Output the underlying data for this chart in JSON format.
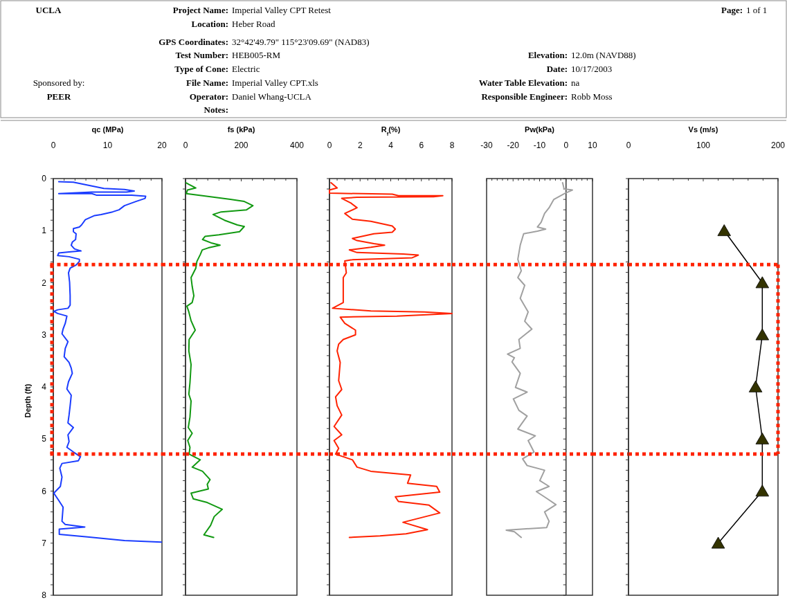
{
  "chart_data": [
    {
      "type": "other",
      "annotations": [
        "UCLA",
        "Sponsored by:",
        "PEER",
        "Project Name: Imperial Valley CPT Retest",
        "Location: Heber Road",
        "GPS Coordinates: 32°42'49.79\" 115°23'09.69\" (NAD83)",
        "Test Number: HEB005-RM",
        "Type of Cone: Electric",
        "File Name: Imperial Valley CPT.xls",
        "Operator: Daniel Whang-UCLA",
        "Notes:",
        "Page: 1 of 1",
        "Elevation: 12.0m (NAVD88)",
        "Date: 10/17/2003",
        "Water Table Elevation: na",
        "Responsible Engineer: Robb Moss"
      ]
    },
    {
      "type": "line",
      "xlabel": "qc (MPa)",
      "ylabel": "Depth (ft)",
      "xlim": [
        0,
        20
      ],
      "ylim": [
        8,
        0
      ],
      "xticks": [
        0,
        {
          "value": 2,
          "label": null
        },
        {
          "value": 4,
          "label": null
        },
        {
          "value": 6,
          "label": null
        },
        {
          "value": 8,
          "label": null
        },
        10,
        {
          "value": 12,
          "label": null
        },
        {
          "value": 14,
          "label": null
        },
        {
          "value": 16,
          "label": null
        },
        {
          "value": 18,
          "label": null
        },
        20
      ],
      "yticks": [
        0,
        {
          "value": 0.2,
          "label": null
        },
        {
          "value": 0.4,
          "label": null
        },
        {
          "value": 0.6,
          "label": null
        },
        {
          "value": 0.8,
          "label": null
        },
        1,
        {
          "value": 1.2,
          "label": null
        },
        {
          "value": 1.4,
          "label": null
        },
        {
          "value": 1.6,
          "label": null
        },
        {
          "value": 1.8,
          "label": null
        },
        2,
        {
          "value": 2.2,
          "label": null
        },
        {
          "value": 2.4,
          "label": null
        },
        {
          "value": 2.6,
          "label": null
        },
        {
          "value": 2.8,
          "label": null
        },
        3,
        {
          "value": 3.2,
          "label": null
        },
        {
          "value": 3.4,
          "label": null
        },
        {
          "value": 3.6,
          "label": null
        },
        {
          "value": 3.8,
          "label": null
        },
        4,
        {
          "value": 4.2,
          "label": null
        },
        {
          "value": 4.4,
          "label": null
        },
        {
          "value": 4.6,
          "label": null
        },
        {
          "value": 4.8,
          "label": null
        },
        5,
        {
          "value": 5.2,
          "label": null
        },
        {
          "value": 5.4,
          "label": null
        },
        {
          "value": 5.6,
          "label": null
        },
        {
          "value": 5.8,
          "label": null
        },
        6,
        {
          "value": 6.2,
          "label": null
        },
        {
          "value": 6.4,
          "label": null
        },
        {
          "value": 6.6,
          "label": null
        },
        {
          "value": 6.8,
          "label": null
        },
        7,
        {
          "value": 7.2,
          "label": null
        },
        {
          "value": 7.4,
          "label": null
        },
        {
          "value": 7.6,
          "label": null
        },
        {
          "value": 7.8,
          "label": null
        },
        8
      ],
      "ref_lines": [
        {
          "axis": "y",
          "value": 1.65,
          "color": "#ff2200",
          "line_style": "dotted"
        },
        {
          "axis": "y",
          "value": 5.29,
          "color": "#ff2200",
          "line_style": "dotted"
        }
      ],
      "series": [
        {
          "color": "#1a3cff",
          "x": [
            1.0,
            3.7,
            9.3,
            13.1,
            14.9,
            13.5,
            7.1,
            1.0,
            7.1,
            8,
            14.4,
            17,
            16.9,
            15.2,
            13.1,
            12.1,
            10.9,
            8.8,
            7.6,
            5.9,
            5.2,
            4.8,
            3.7,
            3.7,
            4.2,
            4.1,
            3.5,
            3.3,
            3.9,
            5.1,
            2.9,
            1.0,
            0.8,
            2.9,
            4.8,
            4.8,
            4.2,
            3.1,
            2.8,
            3.0,
            3.1,
            3.1,
            2.7,
            0.8,
            0.1,
            0.8,
            2.5,
            2.2,
            1.8,
            1.6,
            2.7,
            2.2,
            2.0,
            2.9,
            3.3,
            3.5,
            2.8,
            2.5,
            3.3,
            3.1,
            2.9,
            2.7,
            3.7,
            2.7,
            2.9,
            2.5,
            3.7,
            5.0,
            4.6,
            1.6,
            1.2,
            1.6,
            1.3,
            0.1,
            1.0,
            1.8,
            1.6,
            2.2,
            5.8,
            1.1,
            1.1,
            6.3,
            13.1,
            19.9
          ],
          "values": [
            0.06,
            0.07,
            0.19,
            0.21,
            0.24,
            0.26,
            0.26,
            0.29,
            0.29,
            0.32,
            0.32,
            0.34,
            0.38,
            0.44,
            0.52,
            0.6,
            0.64,
            0.69,
            0.71,
            0.79,
            0.89,
            0.93,
            0.96,
            1.02,
            1.06,
            1.17,
            1.22,
            1.28,
            1.35,
            1.39,
            1.41,
            1.43,
            1.48,
            1.5,
            1.55,
            1.59,
            1.66,
            1.72,
            1.81,
            1.99,
            2.25,
            2.43,
            2.49,
            2.52,
            2.55,
            2.59,
            2.64,
            2.78,
            2.89,
            2.98,
            3.13,
            3.26,
            3.42,
            3.53,
            3.64,
            3.74,
            3.9,
            4.04,
            4.16,
            4.36,
            4.54,
            4.69,
            4.78,
            4.92,
            5.05,
            5.16,
            5.25,
            5.34,
            5.42,
            5.47,
            5.56,
            5.73,
            5.91,
            6.04,
            6.18,
            6.31,
            6.58,
            6.64,
            6.69,
            6.73,
            6.83,
            6.88,
            6.95,
            6.98
          ]
        }
      ]
    },
    {
      "type": "line",
      "xlabel": "fs (kPa)",
      "xlim": [
        0,
        400
      ],
      "ylim": [
        8,
        0
      ],
      "tick_labels": "x",
      "xticks": [
        0,
        {
          "value": 40,
          "label": null
        },
        {
          "value": 80,
          "label": null
        },
        {
          "value": 120,
          "label": null
        },
        {
          "value": 160,
          "label": null
        },
        200,
        {
          "value": 240,
          "label": null
        },
        {
          "value": 280,
          "label": null
        },
        {
          "value": 320,
          "label": null
        },
        {
          "value": 360,
          "label": null
        },
        400
      ],
      "yticks": [
        0,
        0.2,
        0.4,
        0.6,
        0.8,
        1,
        1.2,
        1.4,
        1.6,
        1.8,
        2,
        2.2,
        2.4,
        2.6,
        2.8,
        3,
        3.2,
        3.4,
        3.6,
        3.8,
        4,
        4.2,
        4.4,
        4.6,
        4.8,
        5,
        5.2,
        5.4,
        5.6,
        5.8,
        6,
        6.2,
        6.4,
        6.6,
        6.8,
        7,
        7.2,
        7.4,
        7.6,
        7.8,
        8
      ],
      "ref_lines": [
        {
          "axis": "y",
          "value": 1.65,
          "color": "#ff2200",
          "line_style": "dotted"
        },
        {
          "axis": "y",
          "value": 5.29,
          "color": "#ff2200",
          "line_style": "dotted"
        }
      ],
      "series": [
        {
          "color": "#119911",
          "x": [
            2,
            12,
            37,
            7,
            3,
            61,
            161,
            211,
            242,
            219,
            128,
            99,
            140,
            186,
            211,
            194,
            120,
            70,
            61,
            95,
            124,
            82,
            60,
            53,
            41,
            37,
            20,
            24,
            30,
            24,
            5,
            12,
            20,
            35,
            13,
            12,
            20,
            16,
            12,
            20,
            16,
            10,
            24,
            8,
            16,
            13,
            53,
            24,
            61,
            88,
            78,
            82,
            20,
            28,
            78,
            132,
            103,
            90,
            66,
            101
          ],
          "values": [
            0.08,
            0.11,
            0.18,
            0.22,
            0.29,
            0.33,
            0.4,
            0.44,
            0.52,
            0.6,
            0.64,
            0.69,
            0.8,
            0.89,
            0.92,
            1.02,
            1.08,
            1.11,
            1.17,
            1.24,
            1.28,
            1.33,
            1.37,
            1.46,
            1.59,
            1.72,
            1.9,
            2.07,
            2.25,
            2.38,
            2.45,
            2.56,
            2.73,
            2.91,
            3.09,
            3.31,
            3.57,
            3.92,
            4.14,
            4.27,
            4.58,
            4.78,
            4.89,
            5.03,
            5.16,
            5.29,
            5.4,
            5.54,
            5.62,
            5.78,
            5.87,
            5.96,
            6.04,
            6.15,
            6.22,
            6.35,
            6.49,
            6.66,
            6.84,
            6.89
          ]
        }
      ]
    },
    {
      "type": "line",
      "xlabel": "R$_{f}$(%)",
      "xlim": [
        0,
        8
      ],
      "ylim": [
        8,
        0
      ],
      "tick_labels": "x",
      "xticks": [
        0,
        {
          "value": 0.5,
          "label": null
        },
        {
          "value": 1,
          "label": null
        },
        {
          "value": 1.5,
          "label": null
        },
        2,
        {
          "value": 2.5,
          "label": null
        },
        {
          "value": 3,
          "label": null
        },
        {
          "value": 3.5,
          "label": null
        },
        4,
        {
          "value": 4.5,
          "label": null
        },
        {
          "value": 5,
          "label": null
        },
        {
          "value": 5.5,
          "label": null
        },
        6,
        {
          "value": 6.5,
          "label": null
        },
        {
          "value": 7,
          "label": null
        },
        {
          "value": 7.5,
          "label": null
        },
        8
      ],
      "yticks": [
        0,
        0.2,
        0.4,
        0.6,
        0.8,
        1,
        1.2,
        1.4,
        1.6,
        1.8,
        2,
        2.2,
        2.4,
        2.6,
        2.8,
        3,
        3.2,
        3.4,
        3.6,
        3.8,
        4,
        4.2,
        4.4,
        4.6,
        4.8,
        5,
        5.2,
        5.4,
        5.6,
        5.8,
        6,
        6.2,
        6.4,
        6.6,
        6.8,
        7,
        7.2,
        7.4,
        7.6,
        7.8,
        8
      ],
      "ref_lines": [
        {
          "axis": "y",
          "value": 1.65,
          "color": "#ff2200",
          "line_style": "dotted"
        },
        {
          "axis": "y",
          "value": 5.29,
          "color": "#ff2200",
          "line_style": "dotted"
        }
      ],
      "series": [
        {
          "color": "#ff2200",
          "x": [
            0.1,
            0.5,
            0.0,
            0.0,
            4.1,
            4.5,
            7.4,
            6.8,
            1.8,
            0.8,
            1.4,
            1.8,
            1.0,
            1.5,
            2.7,
            4.1,
            4.3,
            4.1,
            2.9,
            1.5,
            1.8,
            2.9,
            3.6,
            2.7,
            1.3,
            1.8,
            4.8,
            5.8,
            5.4,
            1.4,
            1.0,
            1.1,
            0.9,
            0.9,
            0.9,
            0.2,
            2.7,
            6.2,
            8.0,
            4.4,
            0.7,
            1.0,
            1.7,
            1.7,
            0.9,
            0.6,
            0.5,
            0.7,
            0.6,
            0.8,
            0.4,
            0.5,
            0.8,
            0.3,
            0.8,
            0.3,
            0.6,
            0.4,
            1.5,
            1.8,
            2.7,
            5.3,
            5.1,
            7.0,
            7.2,
            4.3,
            4.5,
            6.5,
            7.2,
            4.8,
            6.4,
            5.0,
            3.3,
            1.3
          ],
          "values": [
            0.08,
            0.18,
            0.22,
            0.28,
            0.3,
            0.33,
            0.33,
            0.35,
            0.36,
            0.38,
            0.47,
            0.56,
            0.67,
            0.78,
            0.82,
            0.91,
            0.97,
            1.03,
            1.06,
            1.15,
            1.19,
            1.25,
            1.28,
            1.32,
            1.37,
            1.42,
            1.45,
            1.47,
            1.52,
            1.56,
            1.58,
            1.81,
            1.9,
            2.16,
            2.38,
            2.49,
            2.54,
            2.56,
            2.59,
            2.64,
            2.66,
            2.78,
            2.91,
            3.0,
            3.09,
            3.18,
            3.31,
            3.53,
            3.88,
            4.05,
            4.19,
            4.36,
            4.54,
            4.76,
            4.92,
            5.03,
            5.18,
            5.29,
            5.4,
            5.54,
            5.62,
            5.69,
            5.85,
            5.91,
            6.02,
            6.11,
            6.2,
            6.27,
            6.42,
            6.6,
            6.74,
            6.82,
            6.86,
            6.89
          ]
        }
      ]
    },
    {
      "type": "line",
      "xlabel": "Pw(kPa)",
      "xlim": [
        -30,
        10
      ],
      "ylim": [
        8,
        0
      ],
      "tick_labels": "x",
      "xticks": [
        -30,
        {
          "value": -28,
          "label": null
        },
        {
          "value": -26,
          "label": null
        },
        {
          "value": -24,
          "label": null
        },
        {
          "value": -22,
          "label": null
        },
        -20,
        {
          "value": -18,
          "label": null
        },
        {
          "value": -16,
          "label": null
        },
        {
          "value": -14,
          "label": null
        },
        {
          "value": -12,
          "label": null
        },
        -10,
        {
          "value": -8,
          "label": null
        },
        {
          "value": -6,
          "label": null
        },
        {
          "value": -4,
          "label": null
        },
        {
          "value": -2,
          "label": null
        },
        0,
        {
          "value": 2,
          "label": null
        },
        {
          "value": 4,
          "label": null
        },
        {
          "value": 6,
          "label": null
        },
        {
          "value": 8,
          "label": null
        },
        10
      ],
      "yticks": [
        0,
        0.2,
        0.4,
        0.6,
        0.8,
        1,
        1.2,
        1.4,
        1.6,
        1.8,
        2,
        2.2,
        2.4,
        2.6,
        2.8,
        3,
        3.2,
        3.4,
        3.6,
        3.8,
        4,
        4.2,
        4.4,
        4.6,
        4.8,
        5,
        5.2,
        5.4,
        5.6,
        5.8,
        6,
        6.2,
        6.4,
        6.6,
        6.8,
        7,
        7.2,
        7.4,
        7.6,
        7.8,
        8
      ],
      "ref_lines": [
        {
          "axis": "y",
          "value": 1.65,
          "color": "#ff2200",
          "line_style": "dotted"
        },
        {
          "axis": "y",
          "value": 5.29,
          "color": "#ff2200",
          "line_style": "dotted"
        }
      ],
      "series": [
        {
          "color": "#a0a0a0",
          "x": [
            -1.3,
            -0.7,
            2.4,
            -0.3,
            -4.6,
            -6.4,
            -8.1,
            -9.4,
            -10.8,
            -7.7,
            -10.8,
            -16.0,
            -17.3,
            -18.2,
            -16.9,
            -18.2,
            -15.6,
            -17.3,
            -14.3,
            -15.6,
            -12.9,
            -17.8,
            -17.3,
            -22.1,
            -19.5,
            -20.4,
            -17.3,
            -19.1,
            -14.7,
            -19.9,
            -17.8,
            -14.7,
            -18.2,
            -11.6,
            -14.3,
            -12.1,
            -16.4,
            -14.7,
            -8.1,
            -9.9,
            -6.4,
            -11.2,
            -7.3,
            -3.8,
            -8.1,
            -6.4,
            -7.3,
            -22.6,
            -19.5,
            -16.9
          ],
          "values": [
            0.08,
            0.2,
            0.22,
            0.28,
            0.4,
            0.56,
            0.67,
            0.84,
            0.93,
            0.97,
            1.01,
            1.06,
            1.28,
            1.55,
            1.77,
            1.9,
            2.05,
            2.3,
            2.56,
            2.74,
            2.89,
            3.09,
            3.26,
            3.37,
            3.44,
            3.52,
            3.74,
            4.01,
            4.1,
            4.23,
            4.45,
            4.56,
            4.81,
            4.94,
            5.03,
            5.25,
            5.38,
            5.51,
            5.6,
            5.8,
            5.91,
            6.01,
            6.14,
            6.26,
            6.4,
            6.58,
            6.7,
            6.75,
            6.78,
            6.89
          ]
        }
      ]
    },
    {
      "type": "line",
      "xlabel": "Vs (m/s)",
      "xlim": [
        0,
        200
      ],
      "ylim": [
        8,
        0
      ],
      "tick_labels": "x",
      "marker": "triangle",
      "xticks": [
        0,
        {
          "value": 20,
          "label": null
        },
        {
          "value": 40,
          "label": null
        },
        {
          "value": 60,
          "label": null
        },
        {
          "value": 80,
          "label": null
        },
        100,
        {
          "value": 120,
          "label": null
        },
        {
          "value": 140,
          "label": null
        },
        {
          "value": 160,
          "label": null
        },
        {
          "value": 180,
          "label": null
        },
        200
      ],
      "yticks": [
        0,
        0.2,
        0.4,
        0.6,
        0.8,
        1,
        1.2,
        1.4,
        1.6,
        1.8,
        2,
        2.2,
        2.4,
        2.6,
        2.8,
        3,
        3.2,
        3.4,
        3.6,
        3.8,
        4,
        4.2,
        4.4,
        4.6,
        4.8,
        5,
        5.2,
        5.4,
        5.6,
        5.8,
        6,
        6.2,
        6.4,
        6.6,
        6.8,
        7,
        7.2,
        7.4,
        7.6,
        7.8,
        8
      ],
      "ref_lines": [
        {
          "axis": "y",
          "value": 1.65,
          "color": "#ff2200",
          "line_style": "dotted"
        },
        {
          "axis": "y",
          "value": 5.29,
          "color": "#ff2200",
          "line_style": "dotted"
        }
      ],
      "series": [
        {
          "color": "#333300",
          "x": [
            128,
            179,
            179,
            170,
            179,
            179,
            120
          ],
          "values": [
            1,
            2,
            3,
            4,
            5,
            6,
            7
          ]
        }
      ]
    }
  ]
}
